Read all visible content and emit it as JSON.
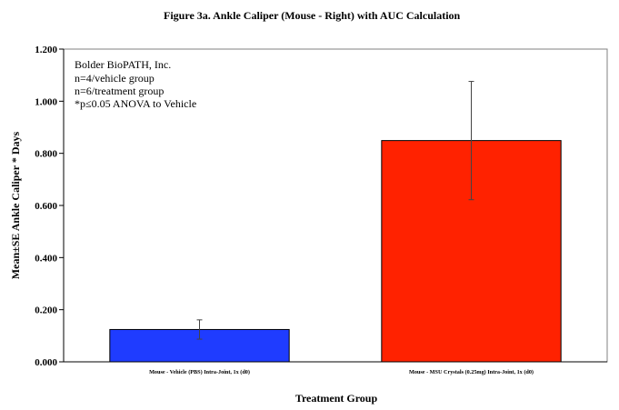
{
  "chart_data": {
    "type": "bar",
    "title": "Figure 3a.  Ankle Caliper (Mouse - Right) with AUC Calculation",
    "xlabel": "Treatment Group",
    "ylabel": "Mean±SE Ankle Caliper * Days",
    "categories": [
      "Mouse - Vehicle (PBS) Intra-Joint, 1x (d0)",
      "Mouse - MSU Crystals (0.25mg) Intra-Joint, 1x (d0)"
    ],
    "values": [
      0.124,
      0.849
    ],
    "errors": [
      0.037,
      0.227
    ],
    "colors": [
      "#1f3cff",
      "#ff2200"
    ],
    "ylim": [
      0,
      1.2
    ],
    "yticks": [
      "0.000",
      "0.200",
      "0.400",
      "0.600",
      "0.800",
      "1.000",
      "1.200"
    ],
    "grid": false,
    "legend": "none",
    "annotations": [
      "Bolder BioPATH, Inc.",
      "n=4/vehicle group",
      "n=6/treatment group",
      "*p≤0.05 ANOVA to Vehicle"
    ]
  }
}
